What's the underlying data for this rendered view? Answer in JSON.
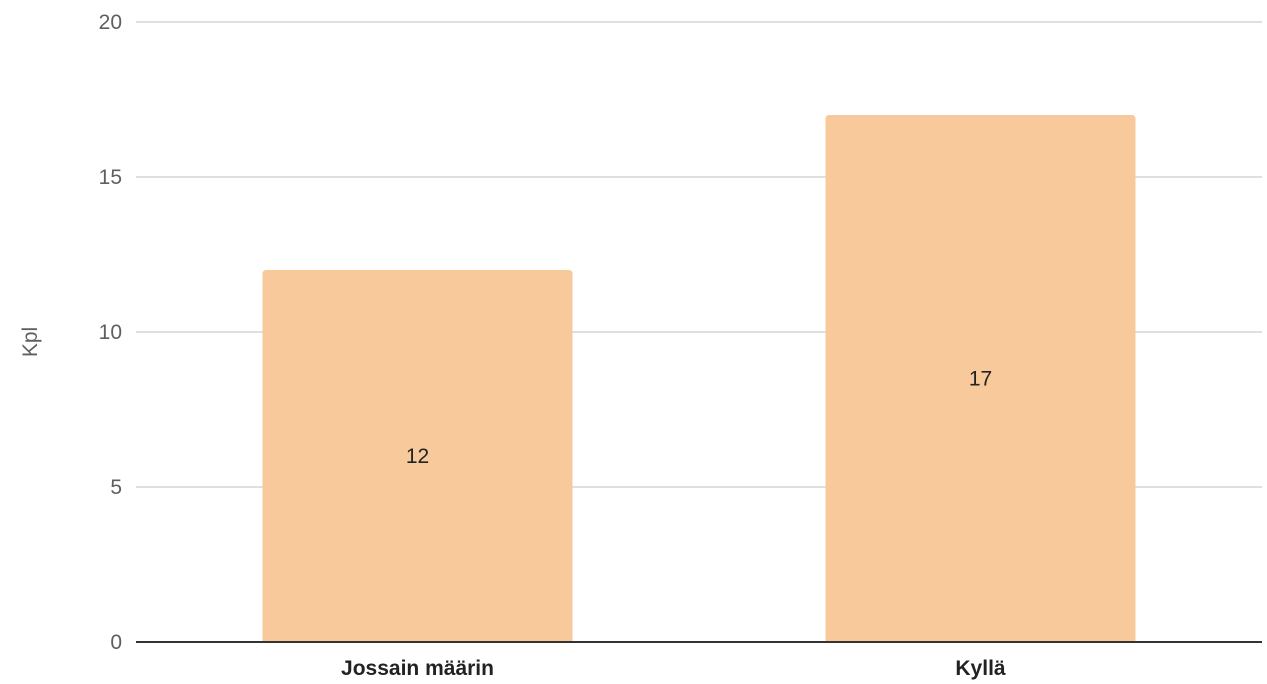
{
  "chart_data": {
    "type": "bar",
    "title": "",
    "xlabel": "",
    "ylabel": "Kpl",
    "categories": [
      "Jossain määrin",
      "Kyllä"
    ],
    "values": [
      12,
      17
    ],
    "data_labels": [
      "12",
      "17"
    ],
    "ylim": [
      0,
      20
    ],
    "yticks": [
      0,
      5,
      10,
      15,
      20
    ],
    "ytick_labels": [
      "0",
      "5",
      "10",
      "15",
      "20"
    ],
    "grid": true,
    "legend": "none",
    "colors": {
      "bar": "#f7c99b",
      "grid": "#cccccc",
      "baseline": "#333333",
      "tick_text": "#5f5f5f",
      "label_text": "#222222"
    }
  }
}
